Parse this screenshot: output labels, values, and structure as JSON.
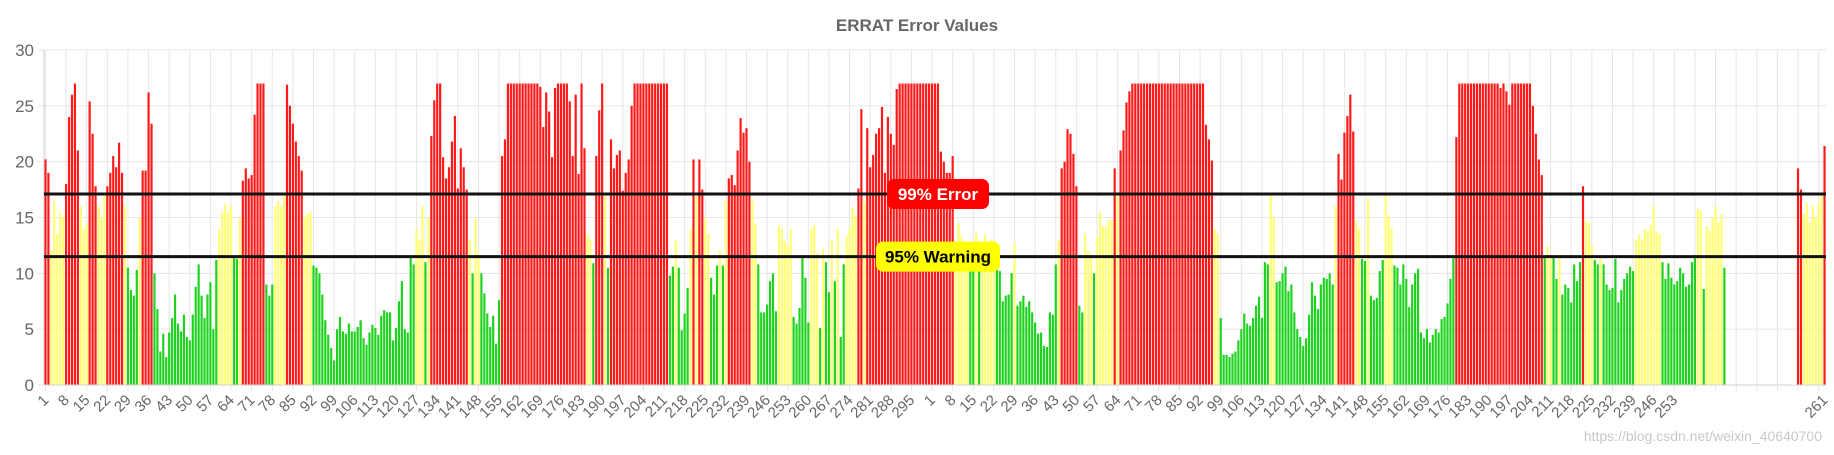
{
  "chart_data": {
    "type": "bar",
    "title": "ERRAT Error Values",
    "xlabel": "",
    "ylabel": "",
    "ylim": [
      0,
      30
    ],
    "yticks": [
      0,
      5,
      10,
      15,
      20,
      25,
      30
    ],
    "grid": true,
    "colors": {
      "green": "#1fd21f",
      "yellow": "#ffff73",
      "red": "#ff1a1a"
    },
    "xtick_labels": [
      "1",
      "8",
      "15",
      "22",
      "29",
      "36",
      "43",
      "50",
      "57",
      "64",
      "71",
      "78",
      "85",
      "92",
      "99",
      "106",
      "113",
      "120",
      "127",
      "134",
      "141",
      "148",
      "155",
      "162",
      "169",
      "176",
      "183",
      "190",
      "197",
      "204",
      "211",
      "218",
      "225",
      "232",
      "239",
      "246",
      "253",
      "260",
      "267",
      "274",
      "281",
      "288",
      "295",
      "1",
      "8",
      "15",
      "22",
      "29",
      "36",
      "43",
      "50",
      "57",
      "64",
      "71",
      "78",
      "85",
      "92",
      "99",
      "106",
      "113",
      "120",
      "127",
      "134",
      "141",
      "148",
      "155",
      "162",
      "169",
      "176",
      "183",
      "190",
      "197",
      "204",
      "211",
      "218",
      "225",
      "232",
      "239",
      "246",
      "253",
      "261"
    ],
    "reference_lines": [
      {
        "label": "99% Error",
        "value": 17.1,
        "color": "#ff0000",
        "text_color": "#ffffff"
      },
      {
        "label": "95% Warning",
        "value": 11.5,
        "color": "#ffff00",
        "text_color": "#000000"
      }
    ],
    "values": [
      20.2,
      19,
      12,
      16.5,
      13.5,
      15.5,
      15,
      18,
      24,
      26,
      27,
      21,
      16,
      14,
      14.5,
      25.4,
      22.5,
      17.8,
      16,
      15,
      16.9,
      17.8,
      19,
      20.5,
      19.5,
      21.7,
      19,
      16,
      10.5,
      8.5,
      8,
      10.3,
      15,
      19.2,
      19.2,
      26.2,
      23.4,
      10,
      6.8,
      3,
      4.6,
      2.5,
      4.7,
      6,
      8.1,
      5.5,
      4.8,
      6.3,
      4.3,
      4,
      6.3,
      8.8,
      10.8,
      8,
      6,
      8.1,
      9.2,
      5,
      11.2,
      14,
      15.5,
      16.2,
      15.5,
      16,
      11.5,
      11.3,
      15,
      18.3,
      19.4,
      18.5,
      18.8,
      24.2,
      27,
      27,
      27,
      9,
      8,
      9,
      16,
      16.5,
      16,
      17,
      26.9,
      25,
      23.4,
      21.8,
      20.5,
      19.2,
      15.1,
      15.3,
      15.5,
      10.7,
      10.5,
      10,
      8.1,
      5.8,
      4.5,
      3.3,
      2.2,
      5,
      6.1,
      4.8,
      4.6,
      5.5,
      4.8,
      4.8,
      5.2,
      5.8,
      4.2,
      3.6,
      4.7,
      5.4,
      5.1,
      4.5,
      6.2,
      6.7,
      6.5,
      6.5,
      4,
      5.1,
      7.5,
      9.3,
      5,
      4.7,
      11.5,
      10.8,
      14,
      13,
      16,
      11,
      15,
      22.3,
      25.5,
      27,
      27,
      20.4,
      18.5,
      19.5,
      21.8,
      24.1,
      17.6,
      21.2,
      19.5,
      17.5,
      13,
      10,
      14.9,
      11.8,
      10,
      8.2,
      6.4,
      5.2,
      6.2,
      3.7,
      7.6,
      20.5,
      22,
      27,
      27,
      27,
      27,
      27,
      27,
      27,
      27,
      27,
      27,
      27,
      26.7,
      23.1,
      26.2,
      24.5,
      20.4,
      26.6,
      27,
      27,
      27,
      27,
      25.4,
      20.5,
      26,
      18.9,
      27,
      21.2,
      13.5,
      13,
      10.9,
      20.5,
      24.6,
      27,
      17,
      10.5,
      22,
      19.4,
      20.6,
      21,
      17.4,
      19,
      20.2,
      25,
      27,
      27,
      27,
      27,
      27,
      27,
      27,
      27,
      27,
      27,
      27,
      27,
      9.8,
      10.6,
      13,
      10.5,
      4.9,
      6.4,
      8.7,
      14,
      20.2,
      16.9,
      20.2,
      17.5,
      15,
      13.5,
      9.6,
      8.1,
      10.7,
      12,
      10.7,
      16.5,
      18.5,
      18.8,
      17.9,
      21,
      23.9,
      22.6,
      23,
      20,
      16.6,
      14.5,
      10.8,
      6.5,
      6.5,
      7.2,
      9.3,
      10,
      6.6,
      14.3,
      14,
      12.9,
      12.5,
      14,
      6.1,
      5.5,
      6.9,
      11.4,
      9.6,
      5.6,
      14,
      14.3,
      11.8,
      5.1,
      12.2,
      11,
      8.3,
      13,
      9.3,
      14,
      4.3,
      10.8,
      13.3,
      14.1,
      15.9,
      15.2,
      17.6,
      24.7,
      16.5,
      23,
      19.5,
      20.6,
      22.5,
      23,
      24.9,
      19,
      24,
      22.5,
      21.5,
      26.5,
      27,
      27,
      27,
      27,
      27,
      27,
      27,
      27,
      27,
      27,
      27,
      27,
      27,
      27,
      20.9,
      20,
      19,
      19,
      20.5,
      12.5,
      14.5,
      13.4,
      11.9,
      12.7,
      11.5,
      11,
      13.6,
      11.5,
      12.3,
      13.5,
      12,
      13,
      13,
      11,
      10.2,
      7.5,
      8,
      8.1,
      10,
      12.7,
      7.1,
      7.5,
      8,
      7,
      7.5,
      6.5,
      5.6,
      4.6,
      4.7,
      3.5,
      3.4,
      6.5,
      6.3,
      10.8,
      13,
      19.4,
      20,
      22.9,
      22.5,
      20.7,
      17.8,
      7.1,
      6.5,
      13.6,
      12,
      11.7,
      10,
      13.2,
      15.5,
      14.2,
      14.2,
      14.8,
      14.8,
      19.4,
      17,
      21,
      22.8,
      25.3,
      26.3,
      27,
      27,
      27,
      27,
      27,
      27,
      27,
      27,
      27,
      27,
      27,
      27,
      27,
      27,
      27,
      27,
      27,
      27,
      27,
      27,
      27,
      27,
      27,
      27,
      27,
      23.3,
      22,
      20.1,
      14,
      13.5,
      6,
      2.7,
      2.7,
      2.5,
      2.8,
      3,
      4,
      5,
      6.4,
      5.5,
      5.3,
      6,
      7.1,
      7.9,
      6,
      11,
      10.8,
      17,
      15,
      9.2,
      9.3,
      10,
      10.6,
      8.4,
      9,
      6.5,
      5,
      4.3,
      3.5,
      4.2,
      6.3,
      9.2,
      8,
      6.8,
      9,
      9.6,
      9.5,
      10,
      9,
      16,
      20.7,
      18.4,
      22.6,
      24.1,
      26,
      22.7,
      14.7,
      14,
      11.3,
      11.1,
      16.7,
      8,
      7.6,
      7.8,
      10.2,
      11.2,
      17,
      15.2,
      14,
      10.7,
      10.5,
      9,
      10.8,
      9.5,
      7,
      9,
      10,
      10.4,
      4.7,
      4.2,
      5,
      3.8,
      4.5,
      5,
      4.7,
      5.9,
      6.1,
      7.3,
      9.5,
      11.5,
      22.2,
      27,
      27,
      27,
      27,
      27,
      27,
      27,
      27,
      27,
      27,
      27,
      27,
      27,
      27,
      26.6,
      27,
      26.3,
      25.1,
      27,
      27,
      27,
      27,
      27,
      27,
      27,
      25,
      22.5,
      20.2,
      18.8,
      11.5,
      12.4,
      11.6,
      11.5,
      9.5,
      11.7,
      8.1,
      9,
      8.7,
      7.4,
      10.8,
      9.3,
      11,
      17.8,
      14.7,
      14.5,
      12.5,
      11.2,
      10.8,
      11.6,
      10.8,
      9,
      8.5,
      8.7,
      11.3,
      7.4,
      8.5,
      9.5,
      10,
      10.6,
      10.2,
      13,
      13.5,
      13,
      14,
      13.8,
      14.3,
      16,
      13.7,
      13.5,
      11,
      9.5,
      10.9,
      9.6,
      9,
      9.3,
      10.5,
      10,
      8.8,
      9,
      11,
      11.5,
      15.8,
      15.6,
      8.6,
      14.2,
      13.8,
      15,
      16,
      14.6,
      15.3,
      10.5,
      0,
      0,
      0,
      0,
      0,
      0,
      0,
      0,
      0,
      0,
      0,
      0,
      0,
      0,
      0,
      0,
      0,
      0,
      0,
      0,
      0,
      0,
      0,
      0,
      19.4,
      17.5,
      15.3,
      16.3,
      14.6,
      16,
      15,
      16.3,
      17,
      21.4
    ]
  },
  "watermark": "https://blog.csdn.net/weixin_40640700"
}
